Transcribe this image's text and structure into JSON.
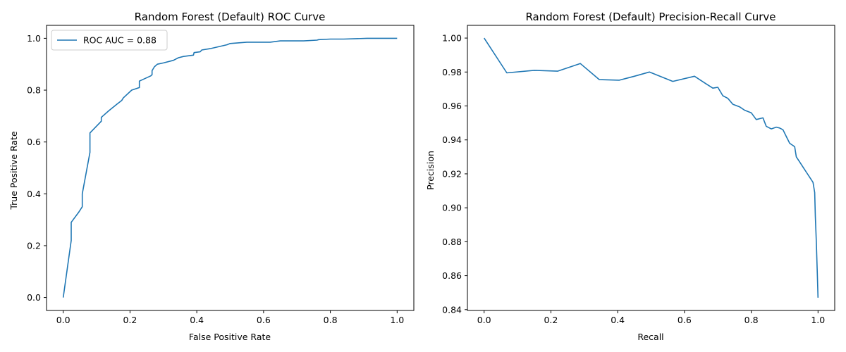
{
  "chart_data": [
    {
      "type": "line",
      "title": "Random Forest (Default) ROC Curve",
      "xlabel": "False Positive Rate",
      "ylabel": "True Positive Rate",
      "xlim": [
        -0.05,
        1.05
      ],
      "ylim": [
        -0.05,
        1.05
      ],
      "xticks": [
        0.0,
        0.2,
        0.4,
        0.6,
        0.8,
        1.0
      ],
      "yticks": [
        0.0,
        0.2,
        0.4,
        0.6,
        0.8,
        1.0
      ],
      "xtick_labels": [
        "0.0",
        "0.2",
        "0.4",
        "0.6",
        "0.8",
        "1.0"
      ],
      "ytick_labels": [
        "0.0",
        "0.2",
        "0.4",
        "0.6",
        "0.8",
        "1.0"
      ],
      "grid": false,
      "legend": "top-left",
      "series": [
        {
          "name": "ROC AUC = 0.88",
          "color": "#1f77b4",
          "x": [
            0.0,
            0.024,
            0.024,
            0.047,
            0.057,
            0.057,
            0.08,
            0.08,
            0.114,
            0.114,
            0.136,
            0.16,
            0.175,
            0.18,
            0.205,
            0.228,
            0.228,
            0.262,
            0.266,
            0.266,
            0.273,
            0.282,
            0.3,
            0.33,
            0.345,
            0.36,
            0.39,
            0.392,
            0.41,
            0.415,
            0.44,
            0.49,
            0.5,
            0.55,
            0.62,
            0.65,
            0.72,
            0.76,
            0.765,
            0.8,
            0.84,
            0.87,
            0.91,
            1.0
          ],
          "y": [
            0.0,
            0.22,
            0.29,
            0.33,
            0.35,
            0.4,
            0.56,
            0.635,
            0.68,
            0.695,
            0.72,
            0.745,
            0.76,
            0.77,
            0.8,
            0.81,
            0.835,
            0.855,
            0.86,
            0.875,
            0.89,
            0.9,
            0.905,
            0.915,
            0.925,
            0.93,
            0.935,
            0.945,
            0.948,
            0.955,
            0.96,
            0.975,
            0.98,
            0.985,
            0.985,
            0.99,
            0.99,
            0.993,
            0.995,
            0.997,
            0.997,
            0.998,
            1.0,
            1.0
          ]
        }
      ]
    },
    {
      "type": "line",
      "title": "Random Forest (Default) Precision-Recall Curve",
      "xlabel": "Recall",
      "ylabel": "Precision",
      "xlim": [
        -0.05,
        1.05
      ],
      "ylim": [
        0.8395,
        1.0075
      ],
      "xticks": [
        0.0,
        0.2,
        0.4,
        0.6,
        0.8,
        1.0
      ],
      "yticks": [
        0.84,
        0.86,
        0.88,
        0.9,
        0.92,
        0.94,
        0.96,
        0.98,
        1.0
      ],
      "xtick_labels": [
        "0.0",
        "0.2",
        "0.4",
        "0.6",
        "0.8",
        "1.0"
      ],
      "ytick_labels": [
        "0.84",
        "0.86",
        "0.88",
        "0.90",
        "0.92",
        "0.94",
        "0.96",
        "0.98",
        "1.00"
      ],
      "grid": false,
      "series": [
        {
          "color": "#1f77b4",
          "x": [
            0.0,
            0.068,
            0.15,
            0.22,
            0.288,
            0.345,
            0.405,
            0.45,
            0.495,
            0.565,
            0.63,
            0.665,
            0.685,
            0.7,
            0.715,
            0.73,
            0.745,
            0.765,
            0.78,
            0.8,
            0.815,
            0.835,
            0.845,
            0.86,
            0.875,
            0.885,
            0.895,
            0.905,
            0.915,
            0.93,
            0.935,
            0.945,
            0.955,
            0.965,
            0.975,
            0.985,
            0.99,
            0.992,
            0.995,
            0.998,
            1.0
          ],
          "y": [
            1.0,
            0.9795,
            0.981,
            0.9805,
            0.985,
            0.9755,
            0.9752,
            0.9775,
            0.98,
            0.9745,
            0.9775,
            0.973,
            0.9705,
            0.971,
            0.966,
            0.9645,
            0.961,
            0.9595,
            0.9575,
            0.956,
            0.952,
            0.953,
            0.948,
            0.9465,
            0.9475,
            0.947,
            0.946,
            0.942,
            0.938,
            0.936,
            0.93,
            0.927,
            0.924,
            0.921,
            0.918,
            0.915,
            0.909,
            0.895,
            0.88,
            0.86,
            0.847
          ]
        }
      ]
    }
  ]
}
